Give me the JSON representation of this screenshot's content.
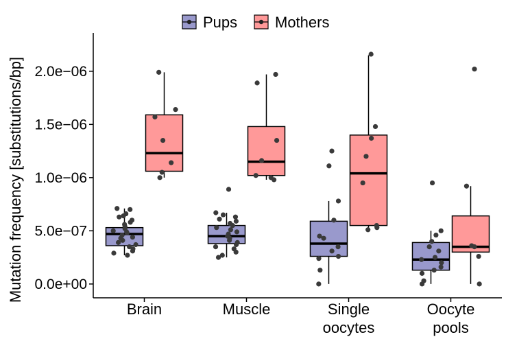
{
  "chart_data": {
    "type": "box",
    "title": "",
    "xlabel": "",
    "ylabel": "Mutation frequency [substitutions/bp]",
    "ylim": [
      -1.3e-07,
      2.36e-06
    ],
    "yticks": [
      0,
      5e-07,
      1e-06,
      1.5e-06,
      2e-06
    ],
    "ytick_labels": [
      "0.0e+00",
      "5.0e−07",
      "1.0e−06",
      "1.5e−06",
      "2.0e−06"
    ],
    "categories": [
      {
        "lines": [
          "Brain"
        ]
      },
      {
        "lines": [
          "Muscle"
        ]
      },
      {
        "lines": [
          "Single",
          "oocytes"
        ]
      },
      {
        "lines": [
          "Oocyte",
          "pools"
        ]
      }
    ],
    "legend": {
      "position": "top"
    },
    "series": [
      {
        "name": "Pups",
        "fill": "#9999cc",
        "boxes": [
          {
            "q1": 3.6e-07,
            "median": 4.7e-07,
            "q3": 5.3e-07,
            "whisker_low": 2.7e-07,
            "whisker_high": 7.1e-07,
            "points": [
              7.1e-07,
              7e-07,
              6.6e-07,
              6.4e-07,
              6.3e-07,
              6e-07,
              5.8e-07,
              5.6e-07,
              5.4e-07,
              5.2e-07,
              5e-07,
              4.9e-07,
              4.8e-07,
              4.6e-07,
              4.4e-07,
              4.3e-07,
              4.1e-07,
              3.9e-07,
              3.7e-07,
              3.5e-07,
              3.3e-07,
              3.1e-07,
              2.9e-07,
              2.7e-07
            ]
          },
          {
            "q1": 3.8e-07,
            "median": 4.5e-07,
            "q3": 5.5e-07,
            "whisker_low": 2.5e-07,
            "whisker_high": 6.7e-07,
            "points": [
              8.9e-07,
              6.7e-07,
              6.5e-07,
              6.3e-07,
              6.1e-07,
              5.9e-07,
              5.7e-07,
              5.5e-07,
              5.3e-07,
              5.1e-07,
              4.9e-07,
              4.7e-07,
              4.5e-07,
              4.3e-07,
              4.1e-07,
              3.9e-07,
              3.7e-07,
              3.5e-07,
              3.3e-07,
              3e-07,
              2.7e-07,
              2.5e-07
            ]
          },
          {
            "q1": 2.6e-07,
            "median": 3.8e-07,
            "q3": 5.9e-07,
            "whisker_low": 0,
            "whisker_high": 7.8e-07,
            "points": [
              1.25e-06,
              1.11e-06,
              7.8e-07,
              6e-07,
              4.5e-07,
              4.3e-07,
              3.5e-07,
              3.1e-07,
              2.6e-07,
              2.4e-07,
              1.3e-07,
              0
            ]
          },
          {
            "q1": 1.3e-07,
            "median": 2.3e-07,
            "q3": 3.9e-07,
            "whisker_low": 0,
            "whisker_high": 5e-07,
            "points": [
              9.5e-07,
              5e-07,
              4.6e-07,
              4e-07,
              3.5e-07,
              3.1e-07,
              2.5e-07,
              2.3e-07,
              2e-07,
              1.6e-07,
              1.3e-07,
              1e-07,
              3e-08,
              0
            ]
          }
        ]
      },
      {
        "name": "Mothers",
        "fill": "#ff9999",
        "boxes": [
          {
            "q1": 1.06e-06,
            "median": 1.23e-06,
            "q3": 1.59e-06,
            "whisker_low": 1e-06,
            "whisker_high": 1.99e-06,
            "points": [
              1.99e-06,
              1.64e-06,
              1.57e-06,
              1.35e-06,
              1.14e-06,
              1.05e-06,
              1e-06
            ]
          },
          {
            "q1": 1.02e-06,
            "median": 1.15e-06,
            "q3": 1.48e-06,
            "whisker_low": 9.8e-07,
            "whisker_high": 1.97e-06,
            "points": [
              1.97e-06,
              1.89e-06,
              1.35e-06,
              1.16e-06,
              1.02e-06,
              1e-06,
              9.8e-07
            ]
          },
          {
            "q1": 5.5e-07,
            "median": 1.04e-06,
            "q3": 1.4e-06,
            "whisker_low": 5.1e-07,
            "whisker_high": 2.15e-06,
            "points": [
              2.16e-06,
              1.48e-06,
              1.37e-06,
              1.2e-06,
              9.5e-07,
              5.5e-07,
              5.3e-07,
              5.1e-07
            ]
          },
          {
            "q1": 3e-07,
            "median": 3.5e-07,
            "q3": 6.4e-07,
            "whisker_low": 0,
            "whisker_high": 9.2e-07,
            "points": [
              2.02e-06,
              9.2e-07,
              3.6e-07,
              3.5e-07,
              2.6e-07,
              0
            ]
          }
        ]
      }
    ]
  }
}
